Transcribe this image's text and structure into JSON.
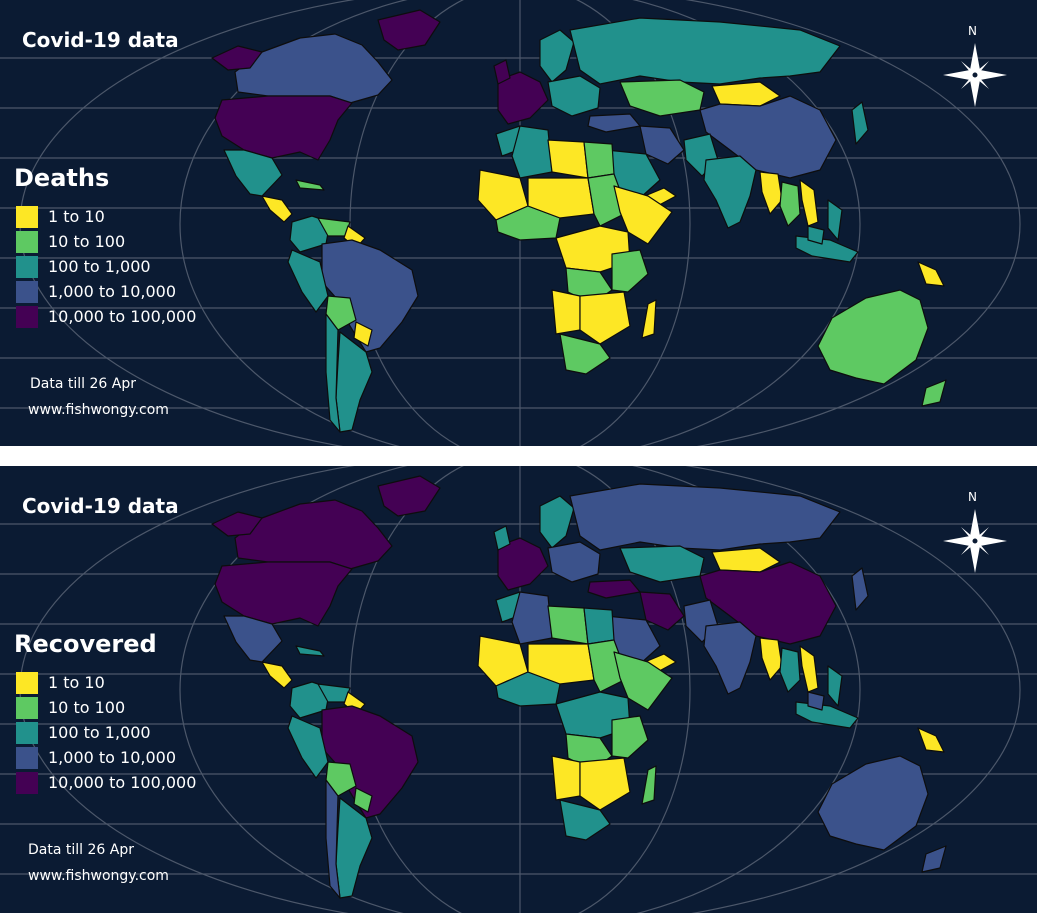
{
  "colors": {
    "background": "#0b1b33",
    "graticule": "#5d6778",
    "border": "#0d0d0d",
    "bins": [
      "#fde725",
      "#5ec962",
      "#21918c",
      "#3b528b",
      "#440154"
    ]
  },
  "icons": [
    "compass-rose-icon"
  ],
  "panels": [
    {
      "title": "Covid-19 data",
      "legend_title": "Deaths",
      "legend": [
        {
          "label": "1 to 10",
          "color": "#fde725"
        },
        {
          "label": "10 to 100",
          "color": "#5ec962"
        },
        {
          "label": "100 to 1,000",
          "color": "#21918c"
        },
        {
          "label": "1,000 to 10,000",
          "color": "#3b528b"
        },
        {
          "label": "10,000 to 100,000",
          "color": "#440154"
        }
      ],
      "note_date": "Data till 26 Apr",
      "note_site": "www.fishwongy.com",
      "compass_label": "N"
    },
    {
      "title": "Covid-19 data",
      "legend_title": "Recovered",
      "legend": [
        {
          "label": "1 to 10",
          "color": "#fde725"
        },
        {
          "label": "10 to 100",
          "color": "#5ec962"
        },
        {
          "label": "100 to 1,000",
          "color": "#21918c"
        },
        {
          "label": "1,000 to 10,000",
          "color": "#3b528b"
        },
        {
          "label": "10,000 to 100,000",
          "color": "#440154"
        }
      ],
      "note_date": "Data till 26 Apr",
      "note_site": "www.fishwongy.com",
      "compass_label": "N"
    }
  ]
}
